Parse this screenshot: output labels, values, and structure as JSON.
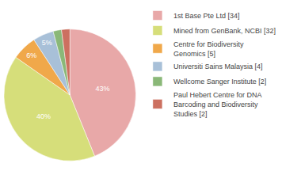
{
  "chart_data": {
    "type": "pie",
    "categories": [
      "1st Base Pte Ltd [34]",
      "Mined from GenBank, NCBI [32]",
      "Centre for Biodiversity\nGenomics [5]",
      "Universiti Sains Malaysia [4]",
      "Wellcome Sanger Institute [2]",
      "Paul Hebert Centre for DNA\nBarcoding and Biodiversity\nStudies [2]"
    ],
    "values": [
      43,
      40,
      6,
      5,
      2,
      2
    ],
    "value_labels": [
      "43%",
      "40%",
      "6%",
      "5%",
      null,
      null
    ],
    "colors": [
      "#e8a8a8",
      "#d6de7a",
      "#f0a84a",
      "#a8c0d8",
      "#8ab878",
      "#cc7060"
    ],
    "data_labels": true,
    "legend": "right"
  }
}
